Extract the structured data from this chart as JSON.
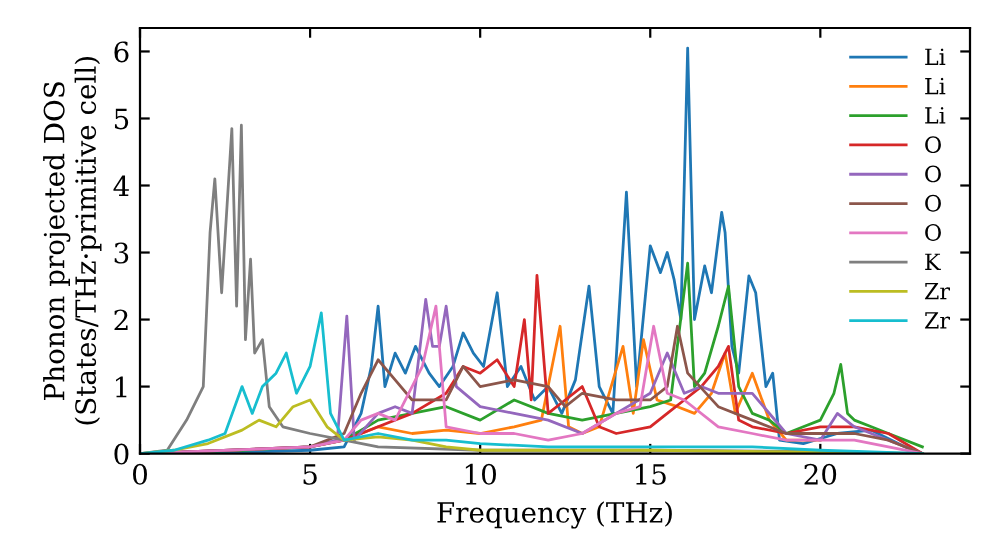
{
  "chart_data": {
    "type": "line",
    "xlabel": "Frequency (THz)",
    "ylabel": "Phonon projected DOS\n(States/THz·primitive cell)",
    "xlim": [
      0,
      24.4
    ],
    "ylim": [
      0,
      6.35
    ],
    "xticks": [
      0,
      5,
      10,
      15,
      20
    ],
    "yticks": [
      0,
      1,
      2,
      3,
      4,
      5,
      6
    ],
    "grid": false,
    "legend": "top right",
    "marker": "none",
    "line_style": "solid",
    "series": [
      {
        "name": "Li",
        "color": "#1f77b4",
        "x": [
          0,
          3,
          5,
          6,
          6.5,
          6.8,
          7.0,
          7.2,
          7.5,
          7.8,
          8.1,
          8.5,
          8.8,
          9.2,
          9.5,
          9.8,
          10.1,
          10.5,
          10.8,
          11.2,
          11.6,
          12.0,
          12.4,
          12.8,
          13.2,
          13.5,
          13.9,
          14.3,
          14.6,
          15.0,
          15.3,
          15.5,
          15.7,
          15.9,
          16.1,
          16.3,
          16.6,
          16.8,
          17.1,
          17.2,
          17.4,
          17.6,
          17.9,
          18.1,
          18.4,
          18.6,
          18.8,
          19.5,
          20.5,
          21.5,
          22.5,
          23
        ],
        "values": [
          0,
          0.02,
          0.05,
          0.1,
          0.6,
          1.3,
          2.2,
          1.0,
          1.5,
          1.2,
          1.6,
          1.2,
          1.0,
          1.3,
          1.8,
          1.5,
          1.3,
          2.4,
          1.0,
          1.3,
          0.8,
          1.0,
          0.6,
          1.1,
          2.5,
          1.0,
          0.6,
          3.9,
          1.0,
          3.1,
          2.7,
          3.0,
          2.6,
          2.0,
          6.05,
          2.0,
          2.8,
          2.4,
          3.6,
          3.3,
          1.6,
          1.2,
          2.65,
          2.4,
          1.0,
          1.2,
          0.2,
          0.15,
          0.3,
          0.35,
          0.1,
          0
        ]
      },
      {
        "name": "Li",
        "color": "#ff7f0e",
        "x": [
          6,
          7,
          8,
          9,
          10,
          11,
          11.8,
          12.35,
          12.6,
          13,
          13.5,
          14.2,
          14.5,
          14.8,
          15.2,
          15.8,
          16.3,
          16.8,
          17.2,
          17.5,
          18,
          18.5,
          19,
          20
        ],
        "values": [
          0.2,
          0.4,
          0.3,
          0.35,
          0.3,
          0.4,
          0.5,
          1.9,
          0.4,
          0.3,
          0.4,
          1.6,
          0.6,
          1.7,
          0.8,
          0.7,
          0.6,
          0.9,
          1.5,
          0.6,
          1.2,
          0.5,
          0.2,
          0.2
        ]
      },
      {
        "name": "Li",
        "color": "#2ca02c",
        "x": [
          0,
          3,
          5,
          6,
          7,
          8,
          9,
          10,
          11,
          12,
          13,
          14,
          15,
          15.6,
          16.1,
          16.3,
          16.6,
          17.0,
          17.3,
          17.6,
          18,
          18.5,
          19,
          19.5,
          20,
          20.4,
          20.6,
          20.8,
          21,
          21.5,
          22,
          23
        ],
        "values": [
          0,
          0.05,
          0.1,
          0.2,
          0.5,
          0.6,
          0.7,
          0.5,
          0.8,
          0.6,
          0.5,
          0.6,
          0.7,
          0.8,
          2.84,
          1.0,
          1.2,
          1.9,
          2.5,
          1.0,
          0.6,
          0.5,
          0.3,
          0.4,
          0.5,
          0.9,
          1.33,
          0.6,
          0.5,
          0.4,
          0.3,
          0.1
        ]
      },
      {
        "name": "O",
        "color": "#d62728",
        "x": [
          0,
          5,
          6,
          7,
          8,
          9,
          9.5,
          10,
          10.5,
          11,
          11.3,
          11.5,
          11.67,
          12,
          12.5,
          13,
          13.5,
          14,
          15,
          15.5,
          16,
          16.5,
          17,
          17.3,
          17.6,
          18,
          19,
          20,
          21,
          22,
          23
        ],
        "values": [
          0,
          0.1,
          0.2,
          0.4,
          0.6,
          0.9,
          1.3,
          1.2,
          1.4,
          1.0,
          2.0,
          0.8,
          2.66,
          0.6,
          0.8,
          1.0,
          0.4,
          0.3,
          0.4,
          0.6,
          0.8,
          1.0,
          1.3,
          1.6,
          0.5,
          0.4,
          0.3,
          0.4,
          0.4,
          0.3,
          0
        ]
      },
      {
        "name": "O",
        "color": "#9467bd",
        "x": [
          0,
          5,
          5.8,
          6.08,
          6.3,
          7,
          7.5,
          8,
          8.4,
          8.6,
          8.8,
          9.0,
          9.3,
          10,
          11,
          12,
          13,
          14,
          15,
          15.5,
          16,
          16.5,
          17,
          18,
          19,
          20,
          20.5,
          21,
          22,
          23
        ],
        "values": [
          0,
          0.1,
          0.2,
          2.05,
          0.2,
          0.6,
          0.7,
          0.6,
          2.3,
          1.6,
          1.6,
          2.2,
          1.0,
          0.7,
          0.6,
          0.5,
          0.3,
          0.6,
          0.9,
          1.5,
          0.9,
          1.0,
          0.9,
          0.9,
          0.3,
          0.2,
          0.6,
          0.4,
          0.2,
          0
        ]
      },
      {
        "name": "O",
        "color": "#8c564b",
        "x": [
          0,
          5,
          6,
          6.5,
          7,
          7.5,
          8,
          9,
          9.5,
          10,
          11,
          12,
          12.5,
          13,
          14,
          15,
          15.5,
          15.8,
          16.1,
          17,
          18,
          19,
          20,
          21,
          22,
          23
        ],
        "values": [
          0,
          0.1,
          0.3,
          0.9,
          1.4,
          1.1,
          0.8,
          0.8,
          1.3,
          1.0,
          1.1,
          1.0,
          0.7,
          0.9,
          0.8,
          0.8,
          1.0,
          1.9,
          1.2,
          0.7,
          0.5,
          0.3,
          0.3,
          0.3,
          0.2,
          0
        ]
      },
      {
        "name": "O",
        "color": "#e377c2",
        "x": [
          0,
          5,
          6,
          6.5,
          7,
          7.5,
          8.3,
          8.7,
          9,
          10,
          11,
          12,
          13,
          14,
          14.7,
          15.1,
          15.5,
          16,
          17,
          18,
          19,
          20,
          21,
          22,
          23
        ],
        "values": [
          0,
          0.1,
          0.2,
          0.5,
          0.6,
          0.5,
          1.3,
          2.2,
          0.4,
          0.3,
          0.3,
          0.2,
          0.3,
          0.6,
          0.7,
          1.9,
          0.9,
          0.8,
          0.4,
          0.3,
          0.2,
          0.2,
          0.2,
          0.1,
          0
        ]
      },
      {
        "name": "K",
        "color": "#7f7f7f",
        "x": [
          0,
          0.8,
          1.37,
          1.86,
          2.06,
          2.2,
          2.4,
          2.7,
          2.84,
          2.98,
          3.1,
          3.25,
          3.37,
          3.6,
          3.8,
          4.2,
          5,
          6,
          7,
          10,
          15,
          20,
          23
        ],
        "values": [
          0,
          0.05,
          0.5,
          1.0,
          3.3,
          4.1,
          2.4,
          4.85,
          2.2,
          4.9,
          1.7,
          2.9,
          1.5,
          1.7,
          0.7,
          0.4,
          0.3,
          0.2,
          0.1,
          0.05,
          0.05,
          0.03,
          0
        ]
      },
      {
        "name": "Zr",
        "color": "#bcbd22",
        "x": [
          0,
          1,
          2,
          3,
          3.5,
          4,
          4.5,
          5,
          5.5,
          6,
          7,
          8,
          9,
          10,
          12,
          15,
          20,
          23
        ],
        "values": [
          0,
          0.05,
          0.15,
          0.35,
          0.5,
          0.4,
          0.7,
          0.8,
          0.4,
          0.2,
          0.25,
          0.2,
          0.1,
          0.05,
          0.05,
          0.05,
          0.02,
          0
        ]
      },
      {
        "name": "Zr",
        "color": "#17becf",
        "x": [
          0,
          1,
          2,
          2.5,
          3,
          3.3,
          3.6,
          4,
          4.3,
          4.6,
          5,
          5.33,
          5.6,
          6,
          7,
          8,
          9,
          10,
          12,
          15,
          18,
          20,
          23
        ],
        "values": [
          0,
          0.05,
          0.2,
          0.3,
          1.0,
          0.6,
          1.0,
          1.2,
          1.5,
          0.9,
          1.3,
          2.1,
          0.6,
          0.2,
          0.3,
          0.2,
          0.2,
          0.15,
          0.1,
          0.1,
          0.1,
          0.05,
          0
        ]
      }
    ]
  }
}
